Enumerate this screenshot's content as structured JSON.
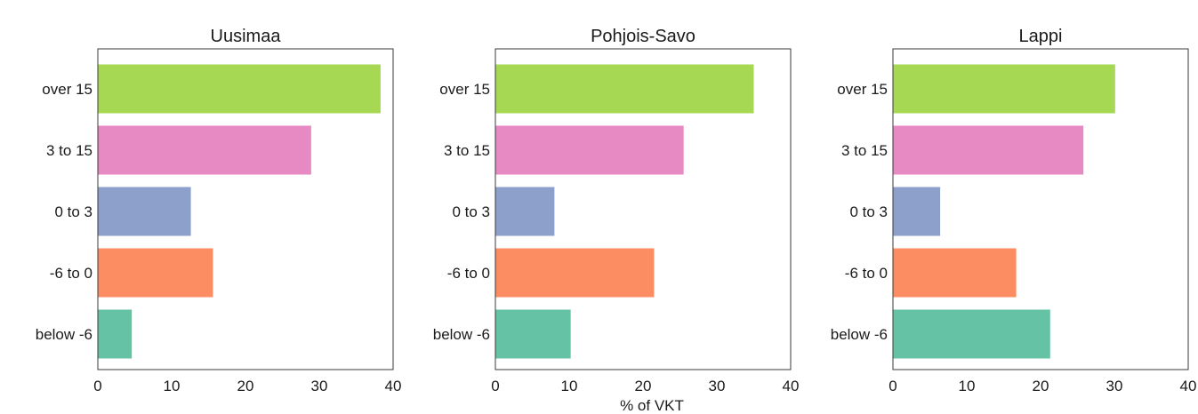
{
  "chart_data": {
    "type": "bar",
    "orientation": "horizontal",
    "categories": [
      "over 15",
      "3 to 15",
      "0 to 3",
      "-6 to 0",
      "below -6"
    ],
    "category_colors": [
      "#a6d854",
      "#e78ac3",
      "#8da0cb",
      "#fc8d62",
      "#66c2a5"
    ],
    "xlim": [
      0,
      40
    ],
    "xticks": [
      0,
      10,
      20,
      30,
      40
    ],
    "xlabel": "% of VKT",
    "grid": false,
    "panels": [
      {
        "title": "Uusimaa",
        "values": [
          38.3,
          28.9,
          12.6,
          15.6,
          4.6
        ]
      },
      {
        "title": "Pohjois-Savo",
        "values": [
          35.0,
          25.5,
          8.0,
          21.5,
          10.2
        ]
      },
      {
        "title": "Lappi",
        "values": [
          30.1,
          25.8,
          6.4,
          16.7,
          21.3
        ]
      }
    ]
  }
}
